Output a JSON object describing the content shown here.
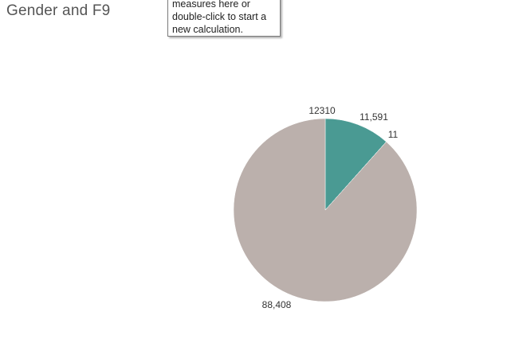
{
  "sheet": {
    "title": "Gender and F9"
  },
  "tooltip": {
    "lines": [
      "measures here or",
      "double-click to start a",
      "new calculation."
    ]
  },
  "chart_data": {
    "type": "pie",
    "title": "Gender and F9",
    "slices": [
      {
        "label": "12310",
        "value": 0,
        "color": "#4a9a93"
      },
      {
        "label": "11,591",
        "value": 11591,
        "color": "#4a9a93"
      },
      {
        "label": "11",
        "value": 11,
        "color": "#4a9a93"
      },
      {
        "label": "88,408",
        "value": 88408,
        "color": "#bbb0ac"
      }
    ],
    "colors": {
      "teal": "#4a9a93",
      "gray": "#bbb0ac"
    }
  }
}
